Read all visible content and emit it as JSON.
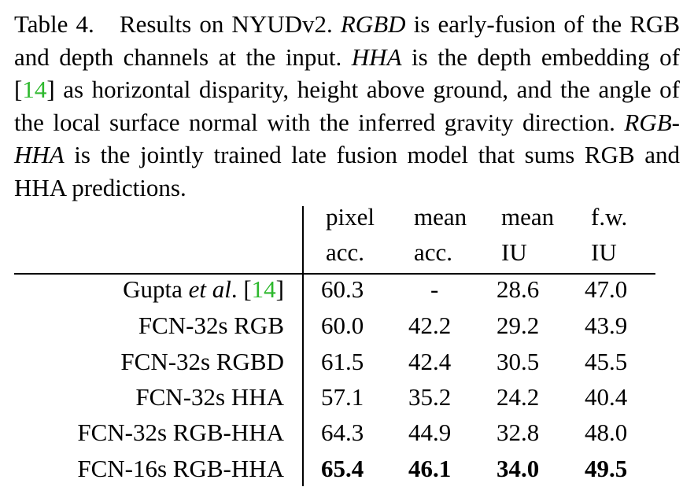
{
  "caption": {
    "label": "Table 4.",
    "s1": "Results on NYUDv2.",
    "t_rgbd": "RGBD",
    "s2": "is early-fusion of the RGB and depth channels at the input.",
    "t_hha": "HHA",
    "s3a": "is the depth embedding of [",
    "cite": "14",
    "s3b": "] as horizontal disparity, height above ground, and the angle of the local surface normal with the inferred gravity direction.",
    "t_rgbhha": "RGB-HHA",
    "s4": "is the jointly trained late fusion model that sums RGB and HHA predictions."
  },
  "table": {
    "headers": [
      {
        "line1": "pixel",
        "line2": "acc."
      },
      {
        "line1": "mean",
        "line2": "acc."
      },
      {
        "line1": "mean",
        "line2": "IU"
      },
      {
        "line1": "f.w.",
        "line2": "IU"
      }
    ],
    "rows": [
      {
        "method_a": "Gupta ",
        "method_it": "et al",
        "method_b": ". [",
        "cite": "14",
        "method_c": "]",
        "values": [
          "60.3",
          "-",
          "28.6",
          "47.0"
        ],
        "bold": false
      },
      {
        "method": "FCN-32s RGB",
        "values": [
          "60.0",
          "42.2",
          "29.2",
          "43.9"
        ],
        "bold": false
      },
      {
        "method": "FCN-32s RGBD",
        "values": [
          "61.5",
          "42.4",
          "30.5",
          "45.5"
        ],
        "bold": false
      },
      {
        "method": "FCN-32s HHA",
        "values": [
          "57.1",
          "35.2",
          "24.2",
          "40.4"
        ],
        "bold": false
      },
      {
        "method": "FCN-32s RGB-HHA",
        "values": [
          "64.3",
          "44.9",
          "32.8",
          "48.0"
        ],
        "bold": false
      },
      {
        "method": "FCN-16s RGB-HHA",
        "values": [
          "65.4",
          "46.1",
          "34.0",
          "49.5"
        ],
        "bold": true
      }
    ]
  }
}
